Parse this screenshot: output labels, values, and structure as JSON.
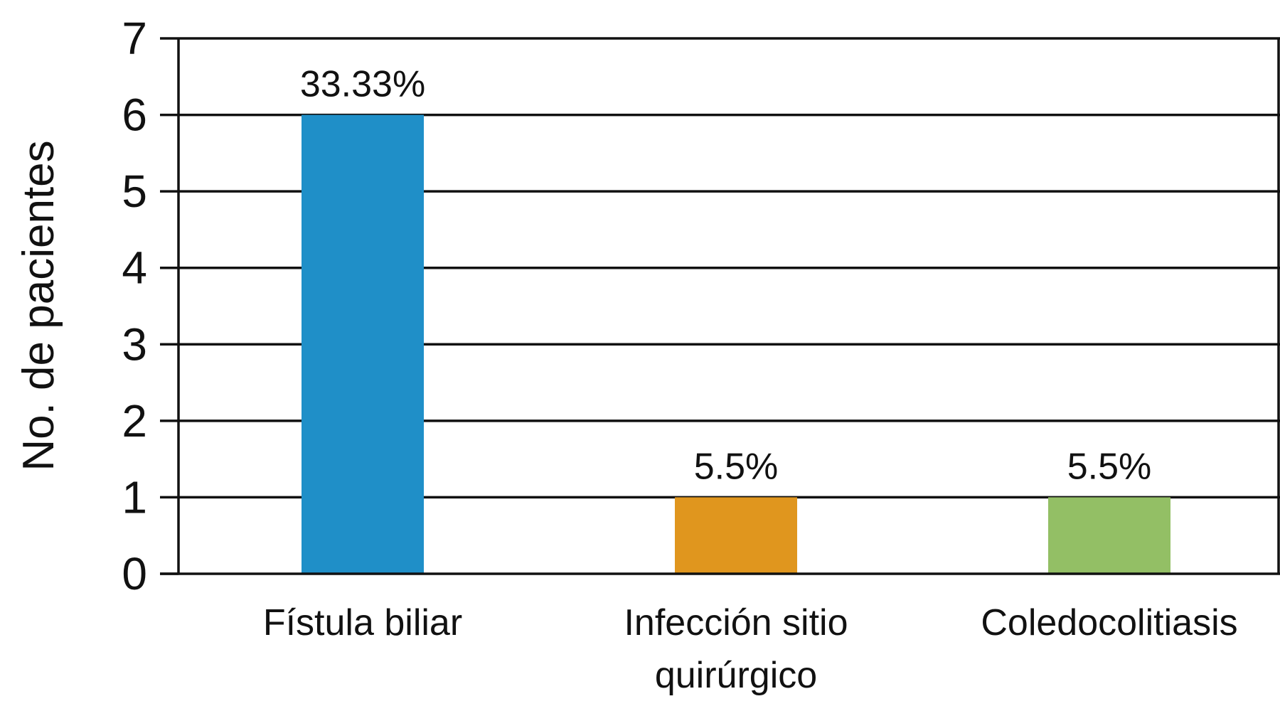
{
  "chart_data": {
    "type": "bar",
    "title": "",
    "xlabel": "",
    "ylabel": "No. de pacientes",
    "ylim": [
      0,
      7
    ],
    "yticks": [
      0,
      1,
      2,
      3,
      4,
      5,
      6,
      7
    ],
    "grid": true,
    "legend": "none",
    "categories": [
      [
        "Fístula biliar"
      ],
      [
        "Infección sitio",
        "quirúrgico"
      ],
      [
        "Coledocolitiasis"
      ]
    ],
    "values": [
      6,
      1,
      1
    ],
    "data_labels": [
      "33.33%",
      "5.5%",
      "5.5%"
    ],
    "colors": [
      "#1f8fc8",
      "#e0961e",
      "#93bf65"
    ]
  }
}
